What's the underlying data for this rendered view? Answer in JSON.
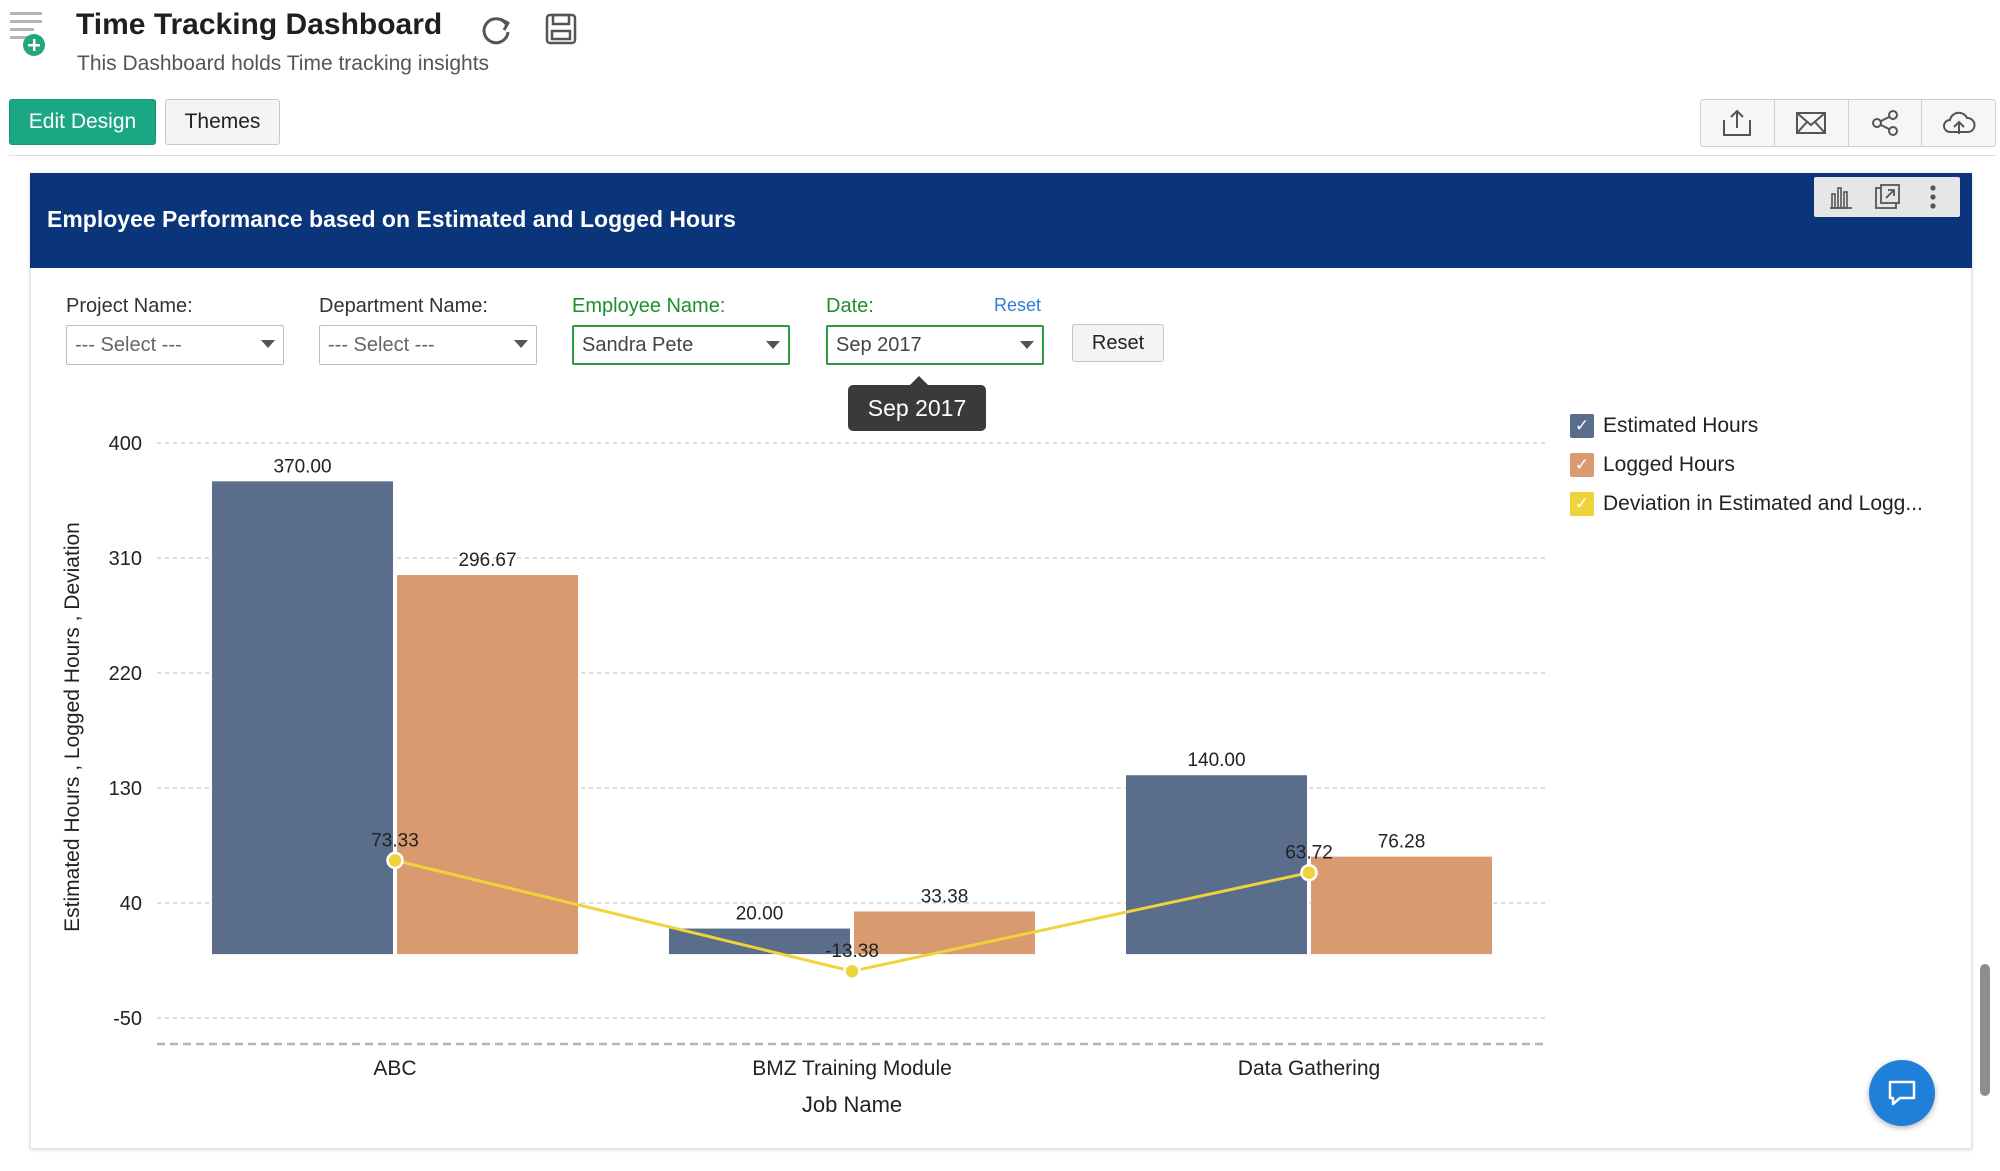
{
  "header": {
    "title": "Time Tracking Dashboard",
    "subtitle": "This Dashboard holds Time tracking insights",
    "icons": [
      "dashboard-add-icon",
      "refresh-icon",
      "save-icon"
    ]
  },
  "toolbar": {
    "edit_design_label": "Edit Design",
    "themes_label": "Themes",
    "right_tools": [
      "export-icon",
      "email-icon",
      "share-icon",
      "publish-cloud-icon"
    ],
    "accent_color": "#1ba784"
  },
  "panel": {
    "title": "Employee Performance based on Estimated and Logged Hours",
    "header_color": "#0a357a",
    "tools": [
      "chart-type-icon",
      "open-in-new-icon",
      "more-options-icon"
    ]
  },
  "filters": {
    "project": {
      "label": "Project Name:",
      "value": "--- Select ---"
    },
    "department": {
      "label": "Department Name:",
      "value": "--- Select ---"
    },
    "employee": {
      "label": "Employee Name:",
      "value": "Sandra Pete"
    },
    "date": {
      "label": "Date:",
      "value": "Sep 2017",
      "reset_link": "Reset"
    },
    "reset_button": "Reset",
    "tooltip": "Sep 2017"
  },
  "chart_data": {
    "type": "bar",
    "categories": [
      "ABC",
      "BMZ Training Module",
      "Data Gathering"
    ],
    "series": [
      {
        "name": "Estimated Hours",
        "kind": "bar",
        "color": "#5a6e8c",
        "values": [
          370.0,
          20.0,
          140.0
        ],
        "labels": [
          "370.00",
          "20.00",
          "140.00"
        ]
      },
      {
        "name": "Logged Hours",
        "kind": "bar",
        "color": "#d99a70",
        "values": [
          296.67,
          33.38,
          76.28
        ],
        "labels": [
          "296.67",
          "33.38",
          "76.28"
        ]
      },
      {
        "name": "Deviation in Estimated and Logg...",
        "kind": "line",
        "color": "#f0d33a",
        "values": [
          73.33,
          -13.38,
          63.72
        ],
        "labels": [
          "73.33",
          "-13.38",
          "63.72"
        ]
      }
    ],
    "xlabel": "Job Name",
    "ylabel": "Estimated Hours , Logged Hours , Deviation",
    "yticks": [
      "400",
      "310",
      "220",
      "130",
      "40",
      "-50"
    ],
    "ytick_values": [
      400,
      310,
      220,
      130,
      40,
      -50
    ],
    "ylim": [
      -50,
      400
    ],
    "grid": true,
    "legend_position": "right"
  }
}
